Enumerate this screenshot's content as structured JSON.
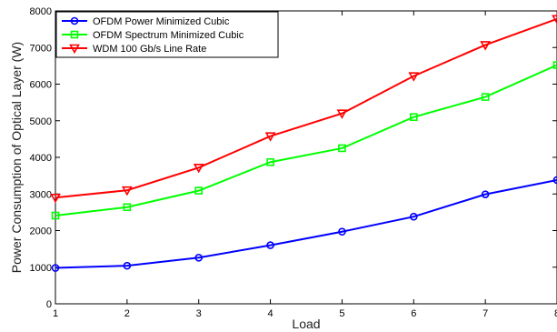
{
  "chart_data": {
    "type": "line",
    "title": "",
    "xlabel": "Load",
    "ylabel": "Power Consumption of Optical Layer (W)",
    "x": [
      1,
      2,
      3,
      4,
      5,
      6,
      7,
      8
    ],
    "xlim": [
      1,
      8
    ],
    "ylim": [
      0,
      8000
    ],
    "x_ticks": [
      "1",
      "2",
      "3",
      "4",
      "5",
      "6",
      "7",
      "8"
    ],
    "y_ticks": [
      "0",
      "1000",
      "2000",
      "3000",
      "4000",
      "5000",
      "6000",
      "7000",
      "8000"
    ],
    "grid": false,
    "legend_position": "top-left",
    "series": [
      {
        "name": "OFDM Power Minimized Cubic",
        "color": "#0000ff",
        "marker": "circle",
        "values": [
          980,
          1040,
          1260,
          1600,
          1970,
          2380,
          2990,
          3380
        ]
      },
      {
        "name": "OFDM Spectrum Minimized Cubic",
        "color": "#00ff00",
        "marker": "square",
        "values": [
          2410,
          2640,
          3090,
          3870,
          4250,
          5100,
          5650,
          6520
        ]
      },
      {
        "name": "WDM 100 Gb/s Line Rate",
        "color": "#ff0000",
        "marker": "triangle-down",
        "values": [
          2900,
          3100,
          3720,
          4580,
          5200,
          6220,
          7070,
          7780
        ]
      }
    ]
  }
}
